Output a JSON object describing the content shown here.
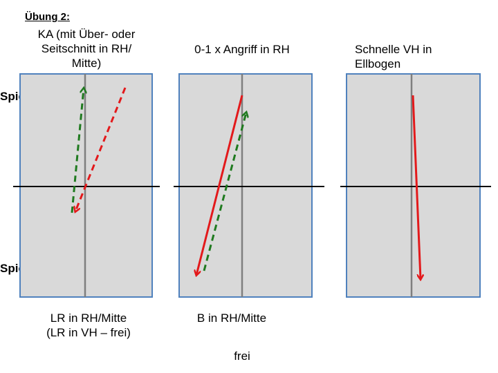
{
  "title": "Übung 2:",
  "players": {
    "a": "Spieler A",
    "b": "Spieler B"
  },
  "panels": [
    {
      "top_caption": [
        "KA (mit Über- oder",
        "Seitschnitt in RH/",
        "Mitte)"
      ],
      "bottom_caption": [
        "LR in RH/Mitte",
        "(LR in VH – frei)"
      ]
    },
    {
      "top_caption": [
        "0-1 x Angriff in RH"
      ],
      "bottom_caption": [
        "B in RH/Mitte"
      ]
    },
    {
      "top_caption": [
        "Schnelle VH in",
        "Ellbogen"
      ],
      "bottom_caption": []
    }
  ],
  "footer": "frei",
  "colors": {
    "table_fill": "#d9d9d9",
    "table_border": "#4f81bd",
    "center_line": "#7f7f7f",
    "red": "#e3191b",
    "green": "#1f7a1f"
  }
}
